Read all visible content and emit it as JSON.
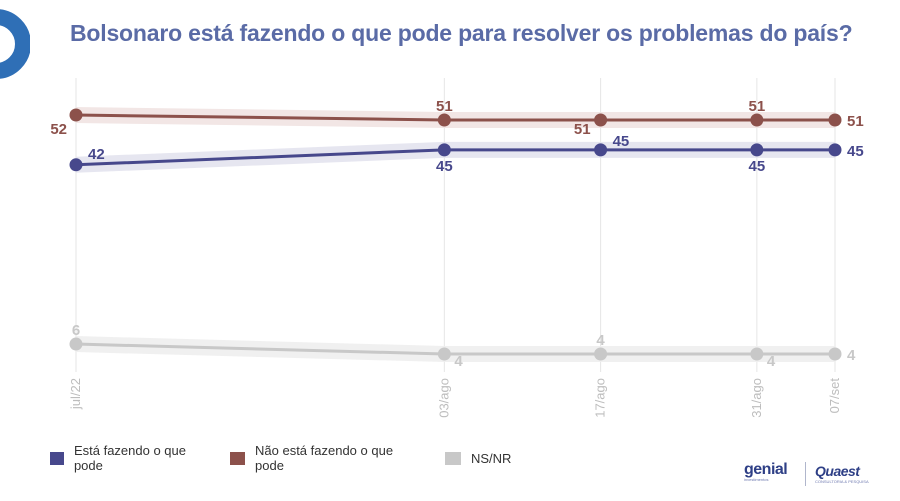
{
  "header": {
    "title": "Bolsonaro está fazendo o que pode para resolver os problemas do país?"
  },
  "chart_data": {
    "type": "line",
    "title": "Bolsonaro está fazendo o que pode para resolver os problemas do país?",
    "categories": [
      "jul/22",
      "03/ago",
      "17/ago",
      "31/ago",
      "07/set"
    ],
    "x_days": [
      0,
      33,
      47,
      61,
      68
    ],
    "ylim": [
      0,
      60
    ],
    "xlabel": "",
    "ylabel": "",
    "grid": "vertical",
    "legend_position": "bottom-left",
    "series": [
      {
        "name": "Está fazendo o que pode",
        "color": "#47488c",
        "band_color": "#e3e3ee",
        "values": [
          42,
          45,
          45,
          45,
          45
        ],
        "label_positions": [
          "right",
          "below",
          "right",
          "below",
          "right"
        ]
      },
      {
        "name": "Não está fazendo o que pode",
        "color": "#8c514b",
        "band_color": "#f1e3e2",
        "values": [
          52,
          51,
          51,
          51,
          51
        ],
        "label_positions": [
          "left",
          "above",
          "left",
          "above",
          "right"
        ]
      },
      {
        "name": "NS/NR",
        "color": "#c8c8c8",
        "band_color": "#eeeeee",
        "values": [
          6,
          4,
          4,
          4,
          4
        ],
        "label_positions": [
          "above",
          "right-below",
          "above",
          "right-below",
          "right"
        ]
      }
    ]
  },
  "legend": {
    "items": [
      {
        "label": "Está fazendo o que pode",
        "color": "#47488c"
      },
      {
        "label": "Não está fazendo o que pode",
        "color": "#8c514b"
      },
      {
        "label": "NS/NR",
        "color": "#c8c8c8"
      }
    ]
  },
  "brands": {
    "genial": "genial",
    "genial_sub": "investimentos",
    "quaest": "Quaest",
    "quaest_sub": "CONSULTORIA & PESQUISA"
  },
  "colors": {
    "title": "#5a6ba6",
    "accent_logo": "#2f6fb6"
  }
}
